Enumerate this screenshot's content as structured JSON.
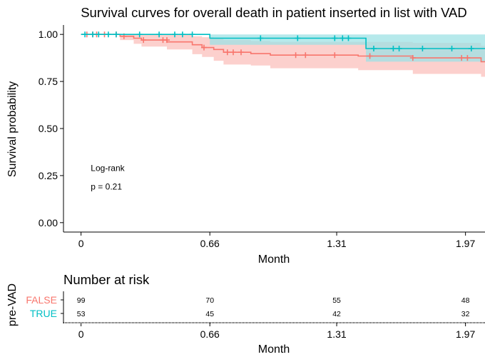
{
  "chart_data": {
    "type": "line",
    "subtype": "kaplan-meier",
    "title": "Survival curves for overall death in patient inserted in list with VAD",
    "xlabel": "Month",
    "ylabel": "Survival probability",
    "xlim": [
      -0.09,
      2.07
    ],
    "ylim": [
      -0.05,
      1.05
    ],
    "x_ticks": [
      {
        "value": 0,
        "label": "0"
      },
      {
        "value": 0.66,
        "label": "0.66"
      },
      {
        "value": 1.31,
        "label": "1.31"
      },
      {
        "value": 1.97,
        "label": "1.97"
      }
    ],
    "y_ticks": [
      {
        "value": 0,
        "label": "0.00"
      },
      {
        "value": 0.25,
        "label": "0.25"
      },
      {
        "value": 0.5,
        "label": "0.50"
      },
      {
        "value": 0.75,
        "label": "0.75"
      },
      {
        "value": 1,
        "label": "1.00"
      }
    ],
    "grid": false,
    "annotation": {
      "line1": "Log-rank",
      "line2": "p = 0.21",
      "x": 0.05,
      "y": [
        0.29,
        0.19
      ]
    },
    "series": [
      {
        "name": "FALSE",
        "color": "#F8766D",
        "band_color": "#FCC8C4",
        "steps": [
          [
            0,
            1.0
          ],
          [
            0.2,
            0.99
          ],
          [
            0.27,
            0.98
          ],
          [
            0.31,
            0.97
          ],
          [
            0.44,
            0.96
          ],
          [
            0.57,
            0.945
          ],
          [
            0.62,
            0.93
          ],
          [
            0.68,
            0.92
          ],
          [
            0.73,
            0.905
          ],
          [
            0.87,
            0.898
          ],
          [
            0.97,
            0.89
          ],
          [
            1.42,
            0.885
          ],
          [
            1.7,
            0.875
          ],
          [
            2.05,
            0.855
          ],
          [
            2.07,
            0.855
          ]
        ],
        "lower": [
          [
            0,
            1.0
          ],
          [
            0.2,
            0.97
          ],
          [
            0.27,
            0.95
          ],
          [
            0.31,
            0.935
          ],
          [
            0.44,
            0.92
          ],
          [
            0.57,
            0.895
          ],
          [
            0.62,
            0.88
          ],
          [
            0.68,
            0.86
          ],
          [
            0.73,
            0.84
          ],
          [
            0.87,
            0.835
          ],
          [
            0.97,
            0.82
          ],
          [
            1.42,
            0.81
          ],
          [
            1.7,
            0.79
          ],
          [
            2.05,
            0.775
          ],
          [
            2.07,
            0.775
          ]
        ],
        "upper": [
          [
            0,
            1.0
          ],
          [
            0.2,
            1.0
          ],
          [
            0.27,
            1.0
          ],
          [
            0.31,
            1.0
          ],
          [
            0.44,
            1.0
          ],
          [
            0.57,
            0.99
          ],
          [
            0.62,
            0.985
          ],
          [
            0.68,
            0.98
          ],
          [
            0.73,
            0.97
          ],
          [
            0.87,
            0.965
          ],
          [
            0.97,
            0.96
          ],
          [
            1.42,
            0.96
          ],
          [
            1.7,
            0.955
          ],
          [
            2.05,
            0.94
          ],
          [
            2.07,
            0.94
          ]
        ],
        "censors": [
          [
            0.03,
            1.0
          ],
          [
            0.06,
            1.0
          ],
          [
            0.08,
            1.0
          ],
          [
            0.12,
            1.0
          ],
          [
            0.18,
            1.0
          ],
          [
            0.22,
            0.99
          ],
          [
            0.32,
            0.97
          ],
          [
            0.42,
            0.97
          ],
          [
            0.44,
            0.97
          ],
          [
            0.63,
            0.93
          ],
          [
            0.75,
            0.905
          ],
          [
            0.78,
            0.905
          ],
          [
            0.82,
            0.905
          ],
          [
            1.1,
            0.89
          ],
          [
            1.15,
            0.89
          ],
          [
            1.3,
            0.89
          ],
          [
            1.48,
            0.885
          ],
          [
            1.7,
            0.875
          ],
          [
            1.95,
            0.875
          ],
          [
            1.98,
            0.875
          ]
        ]
      },
      {
        "name": "TRUE",
        "color": "#00BFC4",
        "band_color": "#9DE2E4",
        "steps": [
          [
            0,
            1.0
          ],
          [
            0.66,
            0.98
          ],
          [
            1.46,
            0.925
          ],
          [
            1.9,
            0.925
          ],
          [
            2.07,
            0.925
          ]
        ],
        "lower": [
          [
            0,
            1.0
          ],
          [
            0.66,
            0.945
          ],
          [
            1.46,
            0.855
          ],
          [
            2.07,
            0.855
          ]
        ],
        "upper": [
          [
            0,
            1.0
          ],
          [
            0.66,
            1.0
          ],
          [
            1.46,
            1.0
          ],
          [
            2.07,
            1.0
          ]
        ],
        "censors": [
          [
            0.02,
            1.0
          ],
          [
            0.06,
            1.0
          ],
          [
            0.09,
            1.0
          ],
          [
            0.14,
            1.0
          ],
          [
            0.18,
            1.0
          ],
          [
            0.3,
            1.0
          ],
          [
            0.4,
            1.0
          ],
          [
            0.48,
            1.0
          ],
          [
            0.52,
            1.0
          ],
          [
            0.57,
            1.0
          ],
          [
            0.92,
            0.98
          ],
          [
            1.11,
            0.98
          ],
          [
            1.3,
            0.98
          ],
          [
            1.34,
            0.98
          ],
          [
            1.37,
            0.98
          ],
          [
            1.5,
            0.925
          ],
          [
            1.6,
            0.925
          ],
          [
            1.63,
            0.925
          ],
          [
            1.75,
            0.925
          ],
          [
            1.9,
            0.925
          ],
          [
            2.0,
            0.925
          ]
        ]
      }
    ]
  },
  "risk_table": {
    "title": "Number at risk",
    "ylabel": "pre-VAD",
    "xlabel": "Month",
    "rows": [
      {
        "label": "FALSE",
        "color": "#F8766D",
        "counts": [
          "99",
          "70",
          "55",
          "48"
        ]
      },
      {
        "label": "TRUE",
        "color": "#00BFC4",
        "counts": [
          "53",
          "45",
          "42",
          "32"
        ]
      }
    ],
    "x_ticks": [
      {
        "value": 0,
        "label": "0"
      },
      {
        "value": 0.66,
        "label": "0.66"
      },
      {
        "value": 1.31,
        "label": "1.31"
      },
      {
        "value": 1.97,
        "label": "1.97"
      }
    ]
  }
}
